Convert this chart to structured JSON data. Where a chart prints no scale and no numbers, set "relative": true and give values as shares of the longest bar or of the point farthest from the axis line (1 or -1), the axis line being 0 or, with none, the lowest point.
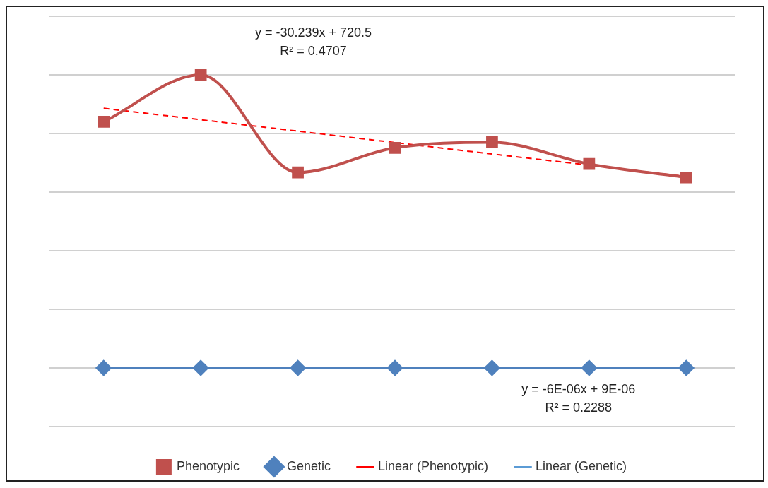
{
  "chart_data": {
    "type": "line",
    "relative": true,
    "categories": [
      null,
      null,
      null,
      null,
      null,
      null,
      null
    ],
    "series": [
      {
        "name": "Phenotypic",
        "color": "#c0504d",
        "marker": "square",
        "values": [
          0.84,
          1,
          0.667,
          0.751,
          0.77,
          0.696,
          0.65
        ]
      },
      {
        "name": "Genetic",
        "color": "#4f81bd",
        "marker": "diamond",
        "values": [
          0,
          0,
          0,
          0,
          0,
          0,
          0
        ]
      },
      {
        "name": "Linear (Phenotypic)",
        "color": "#ff0000",
        "marker": "none",
        "line_style": "dashed",
        "values": [
          0.886,
          0.847,
          0.808,
          0.769,
          0.73,
          0.692,
          0.653
        ]
      },
      {
        "name": "Linear (Genetic)",
        "color": "#5b9bd5",
        "marker": "none",
        "line_style": "dashed",
        "values": [
          null,
          null,
          null,
          null,
          null,
          null,
          null
        ]
      }
    ],
    "annotations": [
      "y = -30.239x + 720.5\nR² = 0.4707",
      "y = -6E-06x + 9E-06\nR² = 0.2288"
    ],
    "grid": "y",
    "legend": "bottom"
  }
}
